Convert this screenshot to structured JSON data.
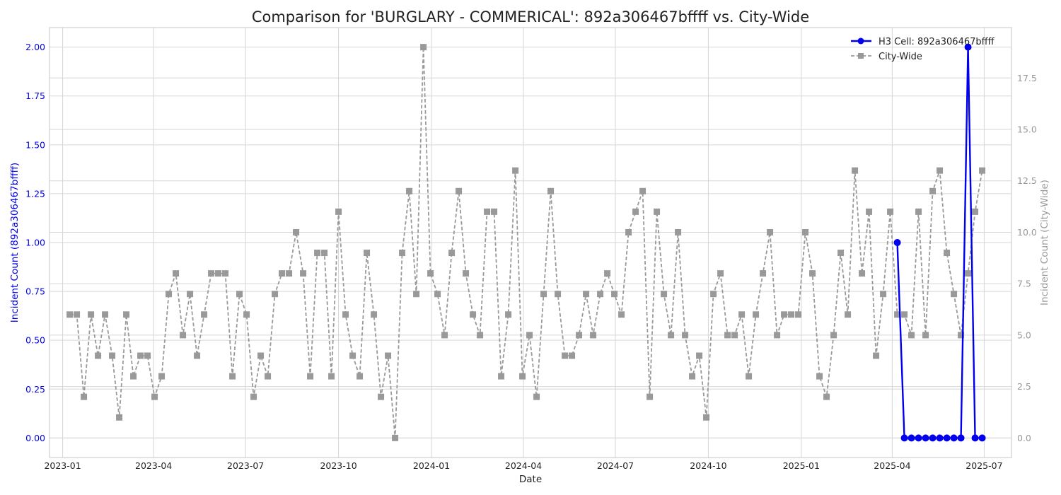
{
  "chart_data": {
    "type": "line",
    "title": "Comparison for 'BURGLARY - COMMERICAL': 892a306467bffff vs. City-Wide",
    "xlabel": "Date",
    "ylabel_left": "Incident Count (892a306467bffff)",
    "ylabel_right": "Incident Count (City-Wide)",
    "xlim": [
      "2022-12-19",
      "2025-07-28"
    ],
    "ylim_left": [
      -0.1,
      2.1
    ],
    "ylim_right": [
      -0.95,
      19.95
    ],
    "x_ticks": [
      "2023-01-01",
      "2023-04-01",
      "2023-07-01",
      "2023-10-01",
      "2024-01-01",
      "2024-04-01",
      "2024-07-01",
      "2024-10-01",
      "2025-01-01",
      "2025-04-01",
      "2025-07-01"
    ],
    "x_tick_labels": [
      "2023-01",
      "2023-04",
      "2023-07",
      "2023-10",
      "2024-01",
      "2024-04",
      "2024-07",
      "2024-10",
      "2025-01",
      "2025-04",
      "2025-07"
    ],
    "y_ticks_left": [
      "0.00",
      "0.25",
      "0.50",
      "0.75",
      "1.00",
      "1.25",
      "1.50",
      "1.75",
      "2.00"
    ],
    "y_ticks_right": [
      "0.0",
      "2.5",
      "5.0",
      "7.5",
      "10.0",
      "12.5",
      "15.0",
      "17.5"
    ],
    "grid": true,
    "legend_position": "top-right",
    "series": [
      {
        "name": "H3 Cell: 892a306467bffff",
        "axis": "left",
        "color": "#0000ee",
        "style": "solid",
        "marker": "circle",
        "x": [
          "2025-04-06",
          "2025-04-13",
          "2025-04-20",
          "2025-04-27",
          "2025-05-04",
          "2025-05-11",
          "2025-05-18",
          "2025-05-25",
          "2025-06-01",
          "2025-06-08",
          "2025-06-15",
          "2025-06-22",
          "2025-06-29"
        ],
        "values": [
          1,
          0,
          0,
          0,
          0,
          0,
          0,
          0,
          0,
          0,
          2,
          0,
          0
        ]
      },
      {
        "name": "City-Wide",
        "axis": "right",
        "color": "#999999",
        "style": "dashed",
        "marker": "square",
        "start": "2023-01-08",
        "interval_days": 7,
        "values": [
          6,
          6,
          2,
          6,
          4,
          6,
          4,
          1,
          6,
          3,
          4,
          4,
          2,
          3,
          7,
          8,
          5,
          7,
          4,
          6,
          8,
          8,
          8,
          3,
          7,
          6,
          2,
          4,
          3,
          7,
          8,
          8,
          10,
          8,
          3,
          9,
          9,
          3,
          11,
          6,
          4,
          3,
          9,
          6,
          2,
          4,
          0,
          9,
          12,
          7,
          19,
          8,
          7,
          5,
          9,
          12,
          8,
          6,
          5,
          11,
          11,
          3,
          6,
          13,
          3,
          5,
          2,
          7,
          12,
          7,
          4,
          4,
          5,
          7,
          5,
          7,
          8,
          7,
          6,
          10,
          11,
          12,
          2,
          11,
          7,
          5,
          10,
          5,
          3,
          4,
          1,
          7,
          8,
          5,
          5,
          6,
          3,
          6,
          8,
          10,
          5,
          6,
          6,
          6,
          10,
          8,
          3,
          2,
          5,
          9,
          6,
          13,
          8,
          11,
          4,
          7,
          11,
          6,
          6,
          5,
          11,
          5,
          12,
          13,
          9,
          7,
          5,
          8,
          11,
          13
        ]
      }
    ]
  }
}
